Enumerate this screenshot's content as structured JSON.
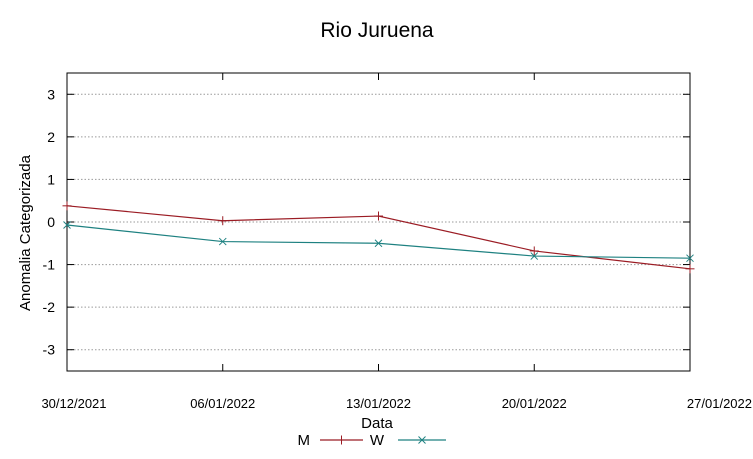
{
  "chart_data": {
    "type": "line",
    "title": "Rio Juruena",
    "xlabel": "Data",
    "ylabel": "Anomalia Categorizada",
    "categories": [
      "30/12/2021",
      "06/01/2022",
      "13/01/2022",
      "20/01/2022",
      "27/01/2022"
    ],
    "yticks": [
      "3",
      "2",
      "1",
      "0",
      "-1",
      "-2",
      "-3"
    ],
    "ylim": [
      -3.5,
      3.5
    ],
    "grid": "horizontal dotted",
    "legend_position": "bottom-center",
    "series": [
      {
        "name": "M",
        "color": "#9b1c24",
        "marker": "+",
        "values": [
          0.38,
          0.03,
          0.14,
          -0.68,
          -1.1
        ]
      },
      {
        "name": "W",
        "color": "#1e8181",
        "marker": "x",
        "values": [
          -0.07,
          -0.46,
          -0.5,
          -0.8,
          -0.85
        ]
      }
    ]
  }
}
